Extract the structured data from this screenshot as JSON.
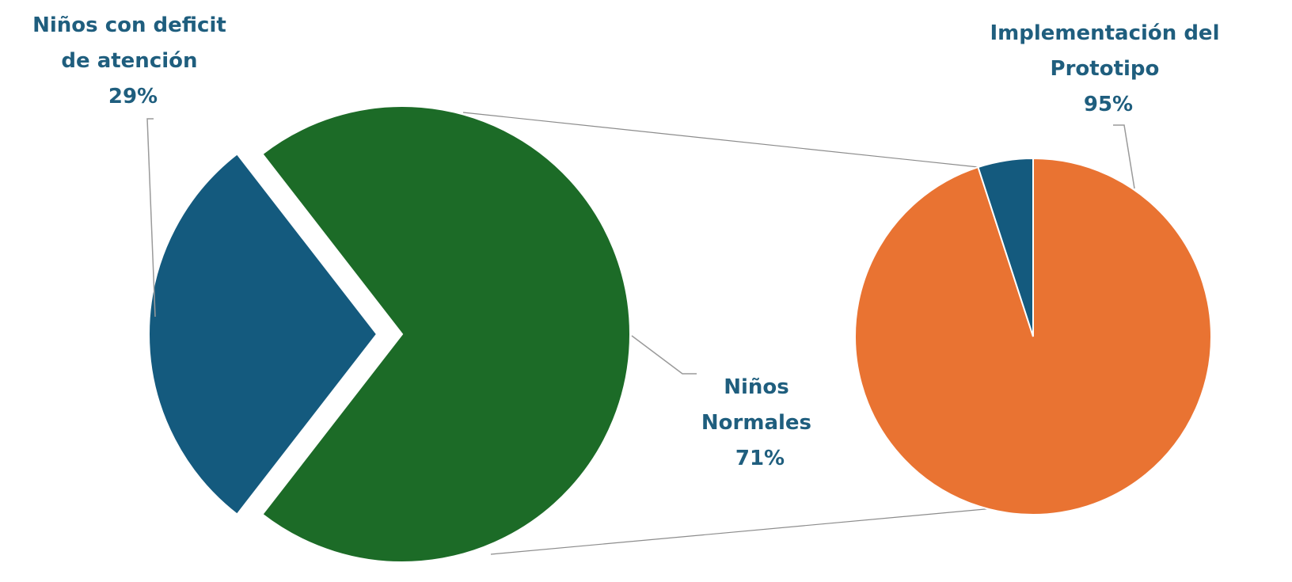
{
  "chart_data": [
    {
      "type": "pie",
      "slices": [
        {
          "label_lines": [
            "Niños con deficit",
            "de atención"
          ],
          "percent_label": "29%",
          "value": 29,
          "color": "#145A7E",
          "exploded": true
        },
        {
          "label_lines": [
            "Niños",
            "Normales"
          ],
          "percent_label": "71%",
          "value": 71,
          "color": "#1C6B27",
          "exploded": false
        }
      ]
    },
    {
      "type": "pie",
      "slices": [
        {
          "label_lines": [
            "Implementación del",
            "Prototipo"
          ],
          "percent_label": "95%",
          "value": 95,
          "color": "#E97332"
        },
        {
          "label_lines": [],
          "percent_label": "",
          "value": 5,
          "color": "#145A7E"
        }
      ]
    }
  ],
  "colors": {
    "label_text": "#1F5E7E"
  }
}
